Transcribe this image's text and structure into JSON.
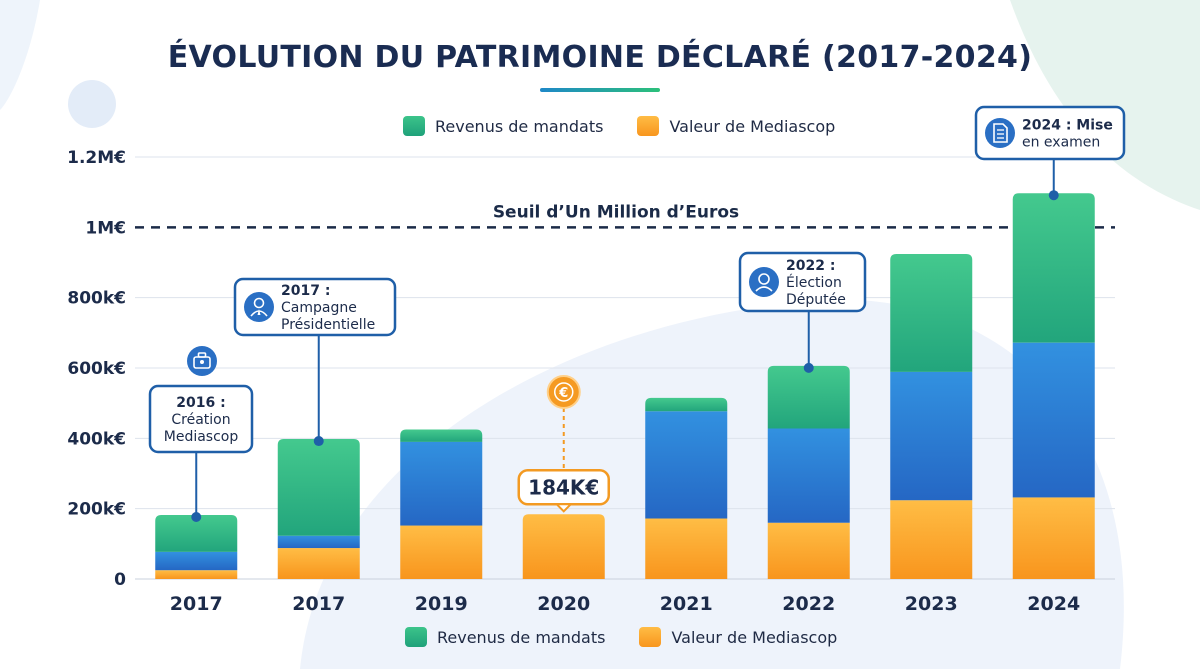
{
  "title": "ÉVOLUTION DU PATRIMOINE DÉCLARÉ (2017-2024)",
  "legend": {
    "top": [
      {
        "label": "Revenus de mandats",
        "color": "#2cb882"
      },
      {
        "label": "Valeur de Mediascop",
        "color": "#f9a12a"
      }
    ],
    "bottom": [
      {
        "label": "Revenus de mandats",
        "color": "#2cb882"
      },
      {
        "label": "Valeur de Mediascop",
        "color": "#f9a12a"
      }
    ]
  },
  "colors": {
    "green": "#2cb882",
    "blue": "#2f86d8",
    "orange": "#f9a12a",
    "axis_text": "#1c2b4a",
    "callout_border": "#1f5fa8",
    "threshold": "#1b2b48"
  },
  "chart_data": {
    "type": "bar",
    "stacked": true,
    "title": "ÉVOLUTION DU PATRIMOINE DÉCLARÉ (2017-2024)",
    "categories": [
      "2017",
      "2017",
      "2019",
      "2020",
      "2021",
      "2022",
      "2023",
      "2024"
    ],
    "series": [
      {
        "name": "Valeur de Mediascop",
        "color": "#f9a12a",
        "values": [
          25000,
          88000,
          152000,
          184000,
          172000,
          160000,
          224000,
          232000
        ]
      },
      {
        "color": "#2f86d8",
        "values": [
          52000,
          35000,
          238000,
          0,
          305000,
          268000,
          365000,
          440000
        ]
      },
      {
        "name": "Revenus de mandats",
        "color": "#2cb882",
        "values": [
          105000,
          275000,
          35000,
          0,
          38000,
          178000,
          335000,
          425000
        ]
      }
    ],
    "ylim": [
      0,
      1200000
    ],
    "yticks": [
      {
        "value": 0,
        "label": "0"
      },
      {
        "value": 200000,
        "label": "200k€"
      },
      {
        "value": 400000,
        "label": "400k€"
      },
      {
        "value": 600000,
        "label": "600k€"
      },
      {
        "value": 800000,
        "label": "800k€"
      },
      {
        "value": 1000000,
        "label": "1M€"
      },
      {
        "value": 1200000,
        "label": "1.2M€"
      }
    ],
    "grid": true,
    "threshold": {
      "value": 1000000,
      "label": "Seuil d’Un Million d’Euros"
    },
    "value_label": {
      "category_index": 3,
      "text": "184K€"
    },
    "annotations": [
      {
        "category_index": 0,
        "lines": [
          "2016 :",
          "Création",
          "Mediascop"
        ],
        "icon": "briefcase-icon"
      },
      {
        "category_index": 1,
        "lines": [
          "2017 :",
          "Campagne",
          "Présidentielle"
        ],
        "icon": "user-tie-icon"
      },
      {
        "category_index": 5,
        "lines": [
          "2022 :",
          "Élection",
          "Députée"
        ],
        "icon": "person-icon"
      },
      {
        "category_index": 7,
        "lines": [
          "2024 : Mise",
          "en examen"
        ],
        "icon": "document-icon"
      }
    ],
    "extra_icons": [
      {
        "category_index": 3,
        "icon": "euro-coin-icon"
      }
    ]
  }
}
